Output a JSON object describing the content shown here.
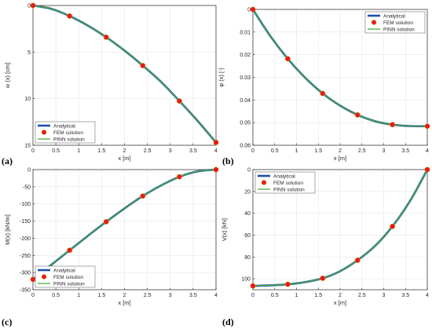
{
  "colors": {
    "analytical": "#1f4fa8",
    "fem": "#e8191e",
    "fem_edge": "#d4a200",
    "pinn": "#4caf3a",
    "grid": "#e6e6e6",
    "axis": "#262626"
  },
  "legend_labels": [
    "Analytical",
    "FEM solution",
    "PINN solution"
  ],
  "chart_data": [
    {
      "type": "line",
      "panel_label": "(a)",
      "xlabel": "x [m]",
      "ylabel": "w (x) [cm]",
      "xlim": [
        0,
        4
      ],
      "ylim": [
        0,
        15
      ],
      "y_reversed": true,
      "xticks": [
        0,
        0.5,
        1,
        1.5,
        2,
        2.5,
        3,
        3.5,
        4
      ],
      "xtick_labels": [
        "0",
        "0.5",
        "1",
        "1.5",
        "2",
        "2.5",
        "3",
        "3.5",
        "4"
      ],
      "yticks": [
        0,
        5,
        10,
        15
      ],
      "ytick_labels": [
        "0",
        "5",
        "10",
        "15"
      ],
      "grid": true,
      "legend_position": "bottom-left",
      "series": [
        {
          "name": "Analytical",
          "x": [
            0,
            0.4,
            0.8,
            1.2,
            1.6,
            2.0,
            2.4,
            2.8,
            3.2,
            3.6,
            4.0
          ],
          "y": [
            0,
            0.36,
            1.13,
            2.16,
            3.4,
            4.84,
            6.45,
            8.2,
            10.25,
            12.4,
            14.7
          ]
        },
        {
          "name": "FEM solution",
          "x": [
            0,
            0.8,
            1.6,
            2.4,
            3.2,
            4.0
          ],
          "y": [
            0,
            1.13,
            3.4,
            6.45,
            10.25,
            14.7
          ]
        },
        {
          "name": "PINN solution",
          "x": [
            0,
            0.4,
            0.8,
            1.2,
            1.6,
            2.0,
            2.4,
            2.8,
            3.2,
            3.6,
            4.0
          ],
          "y": [
            0,
            0.36,
            1.13,
            2.16,
            3.4,
            4.84,
            6.45,
            8.2,
            10.25,
            12.4,
            14.7
          ]
        }
      ]
    },
    {
      "type": "line",
      "panel_label": "(b)",
      "xlabel": "x [m]",
      "ylabel": "φ (x) [-]",
      "xlim": [
        0,
        4
      ],
      "ylim": [
        0,
        0.06
      ],
      "y_reversed": true,
      "xticks": [
        0,
        0.5,
        1,
        1.5,
        2,
        2.5,
        3,
        3.5,
        4
      ],
      "xtick_labels": [
        "0",
        "0.5",
        "1",
        "1.5",
        "2",
        "2.5",
        "3",
        "3.5",
        "4"
      ],
      "yticks": [
        0,
        0.01,
        0.02,
        0.03,
        0.04,
        0.05,
        0.06
      ],
      "ytick_labels": [
        "0",
        "0.01",
        "0.02",
        "0.03",
        "0.04",
        "0.05",
        "0.06"
      ],
      "grid": true,
      "legend_position": "top-right",
      "series": [
        {
          "name": "Analytical",
          "x": [
            0,
            0.4,
            0.8,
            1.2,
            1.6,
            2.0,
            2.4,
            2.8,
            3.2,
            3.6,
            4.0
          ],
          "y": [
            0,
            0.0118,
            0.0218,
            0.0302,
            0.0371,
            0.0425,
            0.0466,
            0.0494,
            0.0509,
            0.0515,
            0.0516
          ]
        },
        {
          "name": "FEM solution",
          "x": [
            0,
            0.8,
            1.6,
            2.4,
            3.2,
            4.0
          ],
          "y": [
            0,
            0.0218,
            0.0371,
            0.0466,
            0.0509,
            0.0516
          ]
        },
        {
          "name": "PINN solution",
          "x": [
            0,
            0.4,
            0.8,
            1.2,
            1.6,
            2.0,
            2.4,
            2.8,
            3.2,
            3.6,
            4.0
          ],
          "y": [
            0,
            0.0118,
            0.0218,
            0.0302,
            0.0371,
            0.0425,
            0.0466,
            0.0494,
            0.0509,
            0.0515,
            0.0516
          ]
        }
      ]
    },
    {
      "type": "line",
      "panel_label": "(c)",
      "xlabel": "x [m]",
      "ylabel": "M(x) [kN/m]",
      "xlim": [
        0,
        4
      ],
      "ylim": [
        -350,
        0
      ],
      "y_reversed": false,
      "xticks": [
        0,
        0.5,
        1,
        1.5,
        2,
        2.5,
        3,
        3.5,
        4
      ],
      "xtick_labels": [
        "0",
        "0.5",
        "1",
        "1.5",
        "2",
        "2.5",
        "3",
        "3.5",
        "4"
      ],
      "yticks": [
        -350,
        -300,
        -250,
        -200,
        -150,
        -100,
        -50,
        0
      ],
      "ytick_labels": [
        "-350",
        "-300",
        "-250",
        "-200",
        "-150",
        "-100",
        "-50",
        "0"
      ],
      "grid": true,
      "legend_position": "bottom-left",
      "series": [
        {
          "name": "Analytical",
          "x": [
            0,
            0.4,
            0.8,
            1.2,
            1.6,
            2.0,
            2.4,
            2.8,
            3.2,
            3.6,
            4.0
          ],
          "y": [
            -320,
            -277.5,
            -235,
            -193,
            -152,
            -113,
            -77,
            -46,
            -21,
            -5,
            0
          ]
        },
        {
          "name": "FEM solution",
          "x": [
            0,
            0.8,
            1.6,
            2.4,
            3.2,
            4.0
          ],
          "y": [
            -320,
            -235,
            -152,
            -77,
            -21,
            0
          ]
        },
        {
          "name": "PINN solution",
          "x": [
            0,
            0.4,
            0.8,
            1.2,
            1.6,
            2.0,
            2.4,
            2.8,
            3.2,
            3.6,
            4.0
          ],
          "y": [
            -320,
            -277.5,
            -235,
            -193,
            -152,
            -113,
            -77,
            -46,
            -21,
            -5,
            0
          ]
        }
      ]
    },
    {
      "type": "line",
      "panel_label": "(d)",
      "xlabel": "x [m]",
      "ylabel": "V(x) [kN]",
      "xlim": [
        0,
        4
      ],
      "ylim": [
        0,
        110
      ],
      "y_reversed": true,
      "xticks": [
        0,
        0.5,
        1,
        1.5,
        2,
        2.5,
        3,
        3.5,
        4
      ],
      "xtick_labels": [
        "0",
        "0.5",
        "1",
        "1.5",
        "2",
        "2.5",
        "3",
        "3.5",
        "4"
      ],
      "yticks": [
        0,
        20,
        40,
        60,
        80,
        100
      ],
      "ytick_labels": [
        "0",
        "20",
        "40",
        "60",
        "80",
        "100"
      ],
      "grid": true,
      "legend_position": "top-left",
      "series": [
        {
          "name": "Analytical",
          "x": [
            0,
            0.4,
            0.8,
            1.2,
            1.6,
            2.0,
            2.4,
            2.8,
            3.2,
            3.6,
            4.0
          ],
          "y": [
            106.5,
            106,
            105,
            103,
            99.5,
            93,
            83,
            70,
            52,
            29,
            0
          ]
        },
        {
          "name": "FEM solution",
          "x": [
            0,
            0.8,
            1.6,
            2.4,
            3.2,
            4.0
          ],
          "y": [
            106.5,
            105,
            99.5,
            83,
            52,
            0
          ]
        },
        {
          "name": "PINN solution",
          "x": [
            0,
            0.4,
            0.8,
            1.2,
            1.6,
            2.0,
            2.4,
            2.8,
            3.2,
            3.6,
            4.0
          ],
          "y": [
            106.5,
            106,
            105,
            103,
            99.5,
            93,
            83,
            70,
            52,
            29,
            0
          ]
        }
      ]
    }
  ]
}
